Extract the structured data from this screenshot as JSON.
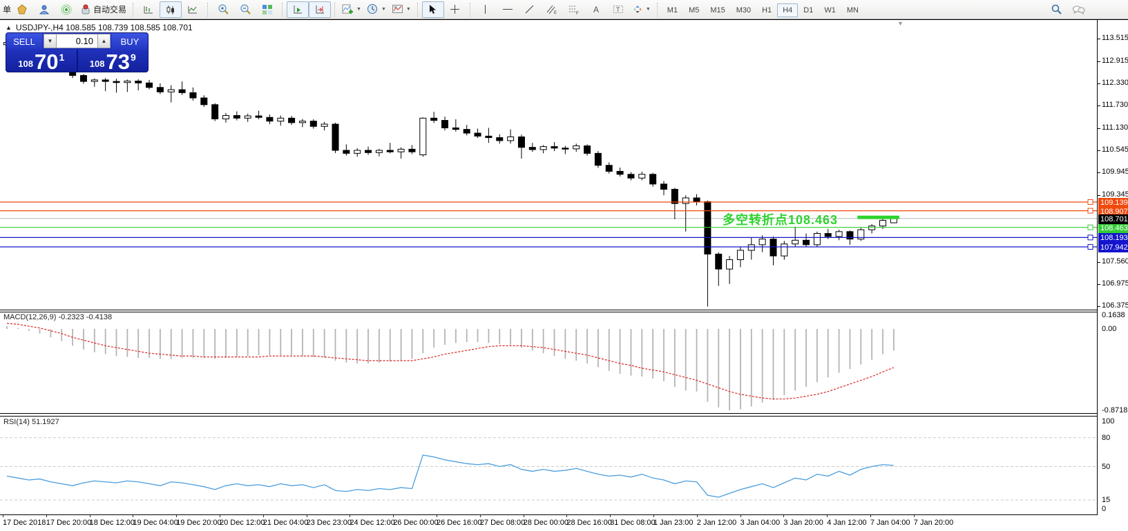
{
  "toolbar": {
    "partial_label": "单",
    "auto_trading_label": "自动交易",
    "timeframes": [
      "M1",
      "M5",
      "M15",
      "M30",
      "H1",
      "H4",
      "D1",
      "W1",
      "MN"
    ],
    "active_timeframe": "H4"
  },
  "chart": {
    "title_full": "USDJPY-,H4  108.585 108.739 108.585 108.701",
    "quote_panel": {
      "sell_label": "SELL",
      "buy_label": "BUY",
      "volume": "0.10",
      "sell_prefix": "108",
      "sell_main": "70",
      "sell_sup": "1",
      "buy_prefix": "108",
      "buy_main": "73",
      "buy_sup": "9"
    },
    "annotation": {
      "text": "多空转折点108.463",
      "color": "#2ed32e"
    },
    "annotation_bar": {
      "from_candle": 78,
      "to_candle": 81,
      "price": 108.73,
      "color": "#2ed32e"
    },
    "axis_prices": [
      113.515,
      112.915,
      112.33,
      111.73,
      111.13,
      110.545,
      109.945,
      109.345,
      107.56,
      106.975,
      106.375
    ],
    "hlines": [
      {
        "price": 109.139,
        "color": "#f04a0e"
      },
      {
        "price": 108.907,
        "color": "#f04a0e"
      },
      {
        "price": 108.463,
        "color": "#33cc33"
      },
      {
        "price": 108.193,
        "color": "#1414cc"
      },
      {
        "price": 107.942,
        "color": "#1414cc"
      }
    ],
    "current_price": {
      "price": 108.701,
      "line_color": "#b8b8b8",
      "label_bg": "#000000"
    },
    "candles": [
      [
        113.34,
        113.46,
        113.28,
        113.4
      ],
      [
        113.4,
        113.44,
        113.22,
        113.26
      ],
      [
        113.26,
        113.33,
        113.15,
        113.2
      ],
      [
        113.2,
        113.31,
        113.12,
        113.28
      ],
      [
        113.28,
        113.3,
        112.98,
        113.04
      ],
      [
        113.04,
        113.09,
        112.72,
        112.78
      ],
      [
        112.78,
        112.8,
        112.45,
        112.52
      ],
      [
        112.52,
        112.56,
        112.3,
        112.36
      ],
      [
        112.36,
        112.44,
        112.22,
        112.4
      ],
      [
        112.4,
        112.45,
        112.1,
        112.36
      ],
      [
        112.36,
        112.43,
        112.06,
        112.33
      ],
      [
        112.33,
        112.41,
        112.08,
        112.37
      ],
      [
        112.37,
        112.42,
        112.12,
        112.32
      ],
      [
        112.32,
        112.4,
        112.15,
        112.2
      ],
      [
        112.2,
        112.31,
        112.02,
        112.08
      ],
      [
        112.08,
        112.26,
        111.8,
        112.14
      ],
      [
        112.14,
        112.36,
        112.0,
        112.06
      ],
      [
        112.06,
        112.2,
        111.85,
        111.92
      ],
      [
        111.92,
        111.99,
        111.68,
        111.74
      ],
      [
        111.74,
        111.78,
        111.3,
        111.36
      ],
      [
        111.36,
        111.52,
        111.26,
        111.45
      ],
      [
        111.45,
        111.56,
        111.32,
        111.38
      ],
      [
        111.38,
        111.5,
        111.28,
        111.44
      ],
      [
        111.44,
        111.58,
        111.35,
        111.4
      ],
      [
        111.4,
        111.48,
        111.22,
        111.3
      ],
      [
        111.3,
        111.45,
        111.18,
        111.38
      ],
      [
        111.38,
        111.44,
        111.2,
        111.26
      ],
      [
        111.26,
        111.36,
        111.14,
        111.3
      ],
      [
        111.3,
        111.35,
        111.1,
        111.16
      ],
      [
        111.16,
        111.28,
        111.05,
        111.22
      ],
      [
        111.22,
        111.26,
        110.45,
        110.52
      ],
      [
        110.52,
        110.68,
        110.38,
        110.44
      ],
      [
        110.44,
        110.58,
        110.35,
        110.52
      ],
      [
        110.52,
        110.62,
        110.4,
        110.46
      ],
      [
        110.46,
        110.56,
        110.36,
        110.52
      ],
      [
        110.52,
        110.72,
        110.44,
        110.48
      ],
      [
        110.48,
        110.6,
        110.3,
        110.55
      ],
      [
        110.55,
        110.66,
        110.42,
        110.48
      ],
      [
        110.4,
        111.4,
        110.35,
        111.38
      ],
      [
        111.38,
        111.55,
        111.25,
        111.32
      ],
      [
        111.32,
        111.42,
        111.05,
        111.12
      ],
      [
        111.12,
        111.35,
        111.02,
        111.08
      ],
      [
        111.08,
        111.2,
        110.92,
        110.98
      ],
      [
        110.98,
        111.1,
        110.85,
        110.9
      ],
      [
        110.9,
        111.12,
        110.72,
        110.86
      ],
      [
        110.86,
        110.95,
        110.7,
        110.78
      ],
      [
        110.78,
        111.08,
        110.7,
        110.88
      ],
      [
        110.88,
        110.94,
        110.3,
        110.6
      ],
      [
        110.6,
        110.72,
        110.48,
        110.54
      ],
      [
        110.54,
        110.66,
        110.44,
        110.62
      ],
      [
        110.62,
        110.74,
        110.5,
        110.58
      ],
      [
        110.58,
        110.64,
        110.42,
        110.56
      ],
      [
        110.56,
        110.7,
        110.48,
        110.64
      ],
      [
        110.64,
        110.68,
        110.38,
        110.44
      ],
      [
        110.44,
        110.5,
        110.05,
        110.12
      ],
      [
        110.12,
        110.2,
        109.9,
        109.96
      ],
      [
        109.96,
        110.06,
        109.82,
        109.88
      ],
      [
        109.88,
        109.94,
        109.72,
        109.78
      ],
      [
        109.78,
        109.95,
        109.72,
        109.88
      ],
      [
        109.88,
        109.92,
        109.55,
        109.62
      ],
      [
        109.62,
        109.7,
        109.32,
        109.48
      ],
      [
        109.48,
        109.52,
        108.68,
        109.1
      ],
      [
        109.1,
        109.32,
        108.35,
        109.25
      ],
      [
        109.25,
        109.35,
        109.05,
        109.15
      ],
      [
        109.15,
        109.18,
        106.35,
        107.75
      ],
      [
        107.75,
        107.8,
        106.9,
        107.35
      ],
      [
        107.35,
        107.7,
        106.95,
        107.6
      ],
      [
        107.6,
        107.95,
        107.4,
        107.85
      ],
      [
        107.85,
        108.2,
        107.6,
        108.0
      ],
      [
        108.0,
        108.25,
        107.8,
        108.15
      ],
      [
        108.15,
        108.22,
        107.45,
        107.7
      ],
      [
        107.7,
        108.1,
        107.6,
        108.02
      ],
      [
        108.02,
        108.48,
        107.95,
        108.12
      ],
      [
        108.12,
        108.3,
        107.95,
        108.0
      ],
      [
        108.0,
        108.35,
        107.95,
        108.3
      ],
      [
        108.3,
        108.42,
        108.15,
        108.22
      ],
      [
        108.22,
        108.4,
        108.12,
        108.35
      ],
      [
        108.35,
        108.38,
        108.0,
        108.15
      ],
      [
        108.15,
        108.45,
        108.1,
        108.4
      ],
      [
        108.4,
        108.55,
        108.3,
        108.5
      ],
      [
        108.5,
        108.72,
        108.42,
        108.65
      ],
      [
        108.585,
        108.739,
        108.585,
        108.701
      ]
    ]
  },
  "macd": {
    "label": "MACD(12,26,9) -0.2323 -0.4138",
    "axis": [
      {
        "v": 0.1638,
        "t": "0.1638"
      },
      {
        "v": 0,
        "t": "0.00"
      },
      {
        "v": -0.8718,
        "t": "-0.8718"
      }
    ],
    "values": [
      0.03,
      0.01,
      -0.02,
      -0.05,
      -0.09,
      -0.13,
      -0.18,
      -0.22,
      -0.25,
      -0.27,
      -0.29,
      -0.3,
      -0.31,
      -0.31,
      -0.32,
      -0.32,
      -0.31,
      -0.31,
      -0.31,
      -0.32,
      -0.31,
      -0.3,
      -0.29,
      -0.28,
      -0.28,
      -0.28,
      -0.28,
      -0.29,
      -0.3,
      -0.31,
      -0.34,
      -0.36,
      -0.37,
      -0.37,
      -0.36,
      -0.35,
      -0.34,
      -0.32,
      -0.26,
      -0.2,
      -0.17,
      -0.15,
      -0.14,
      -0.14,
      -0.15,
      -0.16,
      -0.17,
      -0.2,
      -0.23,
      -0.26,
      -0.29,
      -0.32,
      -0.34,
      -0.37,
      -0.41,
      -0.45,
      -0.48,
      -0.5,
      -0.51,
      -0.53,
      -0.56,
      -0.62,
      -0.66,
      -0.67,
      -0.78,
      -0.84,
      -0.872,
      -0.86,
      -0.83,
      -0.79,
      -0.76,
      -0.71,
      -0.66,
      -0.62,
      -0.57,
      -0.52,
      -0.47,
      -0.43,
      -0.38,
      -0.33,
      -0.27,
      -0.2323
    ],
    "signal": [
      0.06,
      0.05,
      0.03,
      0.01,
      -0.02,
      -0.05,
      -0.09,
      -0.12,
      -0.15,
      -0.18,
      -0.2,
      -0.22,
      -0.24,
      -0.26,
      -0.27,
      -0.28,
      -0.29,
      -0.29,
      -0.3,
      -0.3,
      -0.3,
      -0.3,
      -0.3,
      -0.3,
      -0.29,
      -0.29,
      -0.29,
      -0.29,
      -0.29,
      -0.3,
      -0.31,
      -0.32,
      -0.33,
      -0.34,
      -0.34,
      -0.34,
      -0.34,
      -0.34,
      -0.32,
      -0.3,
      -0.27,
      -0.25,
      -0.23,
      -0.21,
      -0.19,
      -0.18,
      -0.18,
      -0.18,
      -0.19,
      -0.2,
      -0.22,
      -0.24,
      -0.26,
      -0.28,
      -0.31,
      -0.34,
      -0.37,
      -0.39,
      -0.42,
      -0.44,
      -0.46,
      -0.49,
      -0.52,
      -0.55,
      -0.59,
      -0.63,
      -0.67,
      -0.7,
      -0.72,
      -0.74,
      -0.75,
      -0.75,
      -0.74,
      -0.72,
      -0.7,
      -0.67,
      -0.63,
      -0.59,
      -0.55,
      -0.51,
      -0.46,
      -0.4138
    ]
  },
  "rsi": {
    "label": "RSI(14) 51.1927",
    "axis": [
      {
        "v": 100,
        "t": "100"
      },
      {
        "v": 80,
        "t": "80"
      },
      {
        "v": 50,
        "t": "50"
      },
      {
        "v": 15,
        "t": "15"
      },
      {
        "v": 0,
        "t": "0"
      }
    ],
    "levels": [
      80,
      50,
      15
    ],
    "values": [
      40,
      38,
      36,
      37,
      34,
      32,
      30,
      33,
      35,
      34,
      33,
      35,
      34,
      32,
      30,
      34,
      33,
      31,
      29,
      26,
      30,
      32,
      30,
      31,
      29,
      32,
      30,
      31,
      28,
      31,
      25,
      24,
      26,
      25,
      27,
      26,
      28,
      27,
      62,
      60,
      57,
      55,
      53,
      52,
      53,
      50,
      52,
      47,
      45,
      47,
      45,
      46,
      48,
      45,
      42,
      40,
      41,
      39,
      42,
      38,
      36,
      32,
      35,
      34,
      20,
      18,
      22,
      26,
      29,
      32,
      28,
      33,
      38,
      36,
      42,
      40,
      45,
      41,
      47,
      50,
      52,
      51.19
    ]
  },
  "time_axis": [
    "17 Dec 2018",
    "17 Dec 20:00",
    "18 Dec 12:00",
    "19 Dec 04:00",
    "19 Dec 20:00",
    "20 Dec 12:00",
    "21 Dec 04:00",
    "23 Dec 23:00",
    "24 Dec 12:00",
    "26 Dec 00:00",
    "26 Dec 16:00",
    "27 Dec 08:00",
    "28 Dec 00:00",
    "28 Dec 16:00",
    "31 Dec 08:00",
    "1 Jan 23:00",
    "2 Jan 12:00",
    "3 Jan 04:00",
    "3 Jan 20:00",
    "4 Jan 12:00",
    "7 Jan 04:00",
    "7 Jan 20:00"
  ],
  "colors": {
    "bull": "#ffffff",
    "bear": "#000000",
    "outline": "#000000",
    "resistance": "#f04a0e",
    "support": "#1414cc",
    "pivot": "#33cc33",
    "bid_line": "#b8b8b8",
    "macd_bar": "#b4b4b4",
    "macd_signal": "#dd2222",
    "rsi_line": "#4a9ddd",
    "level_dash": "#c9c9c9",
    "panel_blue": "#1b2dc4"
  }
}
